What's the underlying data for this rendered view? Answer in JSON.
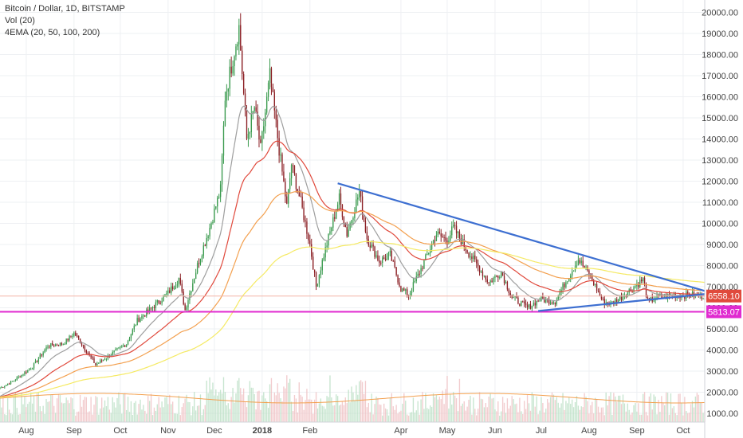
{
  "legend": {
    "symbol": "Bitcoin / Dollar, 1D, BITSTAMP",
    "vol": "Vol (20)",
    "ema": "4EMA (20, 50, 100, 200)"
  },
  "colors": {
    "up": "#3a9a4e",
    "down": "#8b1f24",
    "ema20": "#9e9e9e",
    "ema50": "#e0493c",
    "ema100": "#f3a04f",
    "ema200": "#f5ea63",
    "trend": "#3d6fd1",
    "support": "#e02bd0",
    "price_line": "#f3b5a8",
    "price_badge": "#e04a3c",
    "support_badge": "#e02bd0"
  },
  "price_badge": "6558.10",
  "support_badge": "5813.07",
  "chart_data": {
    "type": "candlestick",
    "ylim": [
      500,
      20500
    ],
    "yticks": [
      "1000.00",
      "2000.00",
      "3000.00",
      "4000.00",
      "5000.00",
      "6000.00",
      "7000.00",
      "8000.00",
      "9000.00",
      "10000.00",
      "11000.00",
      "12000.00",
      "13000.00",
      "14000.00",
      "15000.00",
      "16000.00",
      "17000.00",
      "18000.00",
      "19000.00",
      "20000.00"
    ],
    "xticks": [
      {
        "label": "Aug",
        "date": "2017-08-01"
      },
      {
        "label": "Sep",
        "date": "2017-09-01"
      },
      {
        "label": "Oct",
        "date": "2017-10-01"
      },
      {
        "label": "Nov",
        "date": "2017-11-01"
      },
      {
        "label": "Dec",
        "date": "2017-12-01"
      },
      {
        "label": "2018",
        "date": "2018-01-01",
        "bold": true
      },
      {
        "label": "Feb",
        "date": "2018-02-01"
      },
      {
        "label": "Apr",
        "date": "2018-04-01"
      },
      {
        "label": "May",
        "date": "2018-05-01"
      },
      {
        "label": "Jun",
        "date": "2018-06-01"
      },
      {
        "label": "Jul",
        "date": "2018-07-01"
      },
      {
        "label": "Aug",
        "date": "2018-08-01"
      },
      {
        "label": "Sep",
        "date": "2018-09-01"
      },
      {
        "label": "Oct",
        "date": "2018-10-01"
      }
    ],
    "start_date": "2017-07-15",
    "end_date": "2018-10-15",
    "close_anchors": [
      [
        "2017-07-15",
        2200
      ],
      [
        "2017-07-25",
        2600
      ],
      [
        "2017-08-05",
        3200
      ],
      [
        "2017-08-15",
        4200
      ],
      [
        "2017-08-25",
        4300
      ],
      [
        "2017-09-01",
        4800
      ],
      [
        "2017-09-05",
        4400
      ],
      [
        "2017-09-15",
        3300
      ],
      [
        "2017-09-25",
        3800
      ],
      [
        "2017-10-05",
        4300
      ],
      [
        "2017-10-12",
        5400
      ],
      [
        "2017-10-20",
        5900
      ],
      [
        "2017-11-01",
        6700
      ],
      [
        "2017-11-08",
        7400
      ],
      [
        "2017-11-12",
        5900
      ],
      [
        "2017-11-20",
        8000
      ],
      [
        "2017-11-28",
        9800
      ],
      [
        "2017-12-05",
        11600
      ],
      [
        "2017-12-08",
        16000
      ],
      [
        "2017-12-17",
        19300
      ],
      [
        "2017-12-22",
        14000
      ],
      [
        "2017-12-27",
        15500
      ],
      [
        "2017-12-31",
        13500
      ],
      [
        "2018-01-06",
        17000
      ],
      [
        "2018-01-12",
        13500
      ],
      [
        "2018-01-17",
        10800
      ],
      [
        "2018-01-20",
        12800
      ],
      [
        "2018-01-26",
        11000
      ],
      [
        "2018-02-01",
        9000
      ],
      [
        "2018-02-05",
        7000
      ],
      [
        "2018-02-10",
        8500
      ],
      [
        "2018-02-20",
        11200
      ],
      [
        "2018-02-25",
        9500
      ],
      [
        "2018-03-05",
        11500
      ],
      [
        "2018-03-10",
        9300
      ],
      [
        "2018-03-18",
        8200
      ],
      [
        "2018-03-25",
        8500
      ],
      [
        "2018-04-01",
        6900
      ],
      [
        "2018-04-06",
        6600
      ],
      [
        "2018-04-15",
        8000
      ],
      [
        "2018-04-24",
        9500
      ],
      [
        "2018-05-01",
        9200
      ],
      [
        "2018-05-05",
        9800
      ],
      [
        "2018-05-15",
        8600
      ],
      [
        "2018-05-28",
        7200
      ],
      [
        "2018-06-05",
        7700
      ],
      [
        "2018-06-12",
        6500
      ],
      [
        "2018-06-22",
        6000
      ],
      [
        "2018-06-30",
        6400
      ],
      [
        "2018-07-10",
        6300
      ],
      [
        "2018-07-18",
        7400
      ],
      [
        "2018-07-25",
        8300
      ],
      [
        "2018-08-01",
        7600
      ],
      [
        "2018-08-10",
        6300
      ],
      [
        "2018-08-15",
        6200
      ],
      [
        "2018-08-22",
        6500
      ],
      [
        "2018-09-01",
        7100
      ],
      [
        "2018-09-05",
        7350
      ],
      [
        "2018-09-08",
        6300
      ],
      [
        "2018-09-15",
        6500
      ],
      [
        "2018-09-25",
        6600
      ],
      [
        "2018-10-05",
        6600
      ],
      [
        "2018-10-12",
        6558
      ]
    ],
    "trend_lines": [
      {
        "name": "descending-resistance",
        "from": [
          "2018-02-19",
          11900
        ],
        "to": [
          "2018-10-15",
          6800
        ]
      },
      {
        "name": "ascending-support",
        "from": [
          "2018-06-29",
          5850
        ],
        "to": [
          "2018-10-15",
          6650
        ]
      }
    ],
    "horizontal_lines": [
      {
        "name": "support",
        "price": 5813.07
      },
      {
        "name": "last-price",
        "price": 6558.1
      }
    ]
  }
}
